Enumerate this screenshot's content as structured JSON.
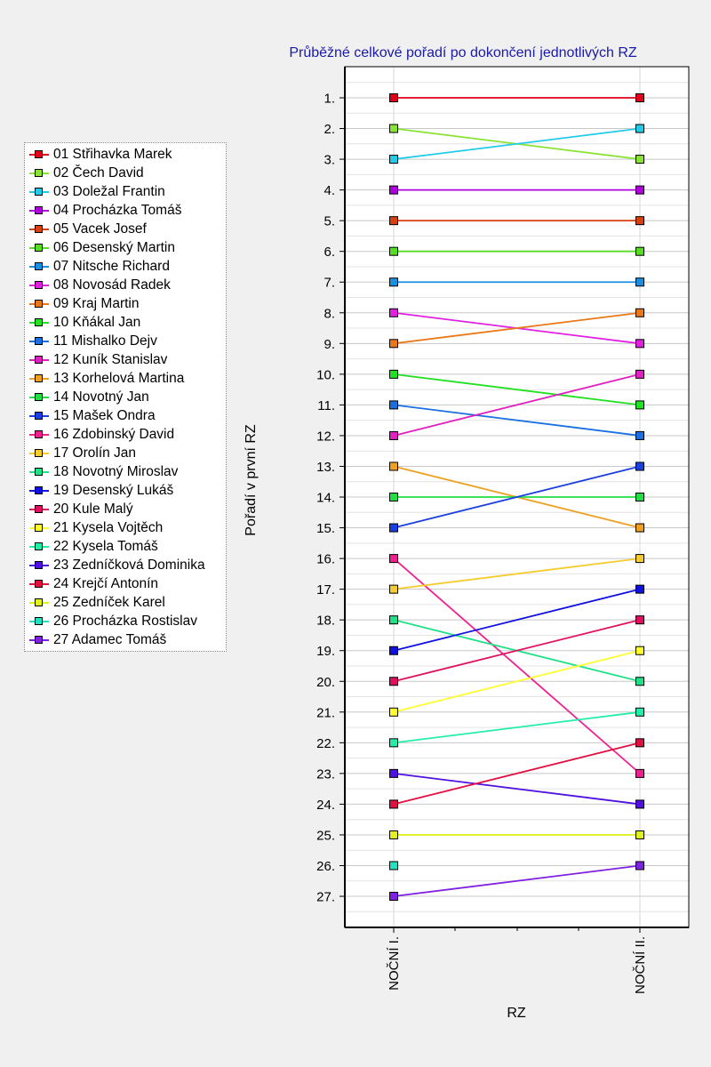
{
  "chart_data": {
    "type": "line",
    "title": "Průběžné celkové pořadí po dokončení jednotlivých RZ",
    "xlabel": "RZ",
    "ylabel": "Pořadí v první RZ",
    "categories": [
      "NOČNÍ I.",
      "NOČNÍ II."
    ],
    "y_ticks": [
      "1.",
      "2.",
      "3.",
      "4.",
      "5.",
      "6.",
      "7.",
      "8.",
      "9.",
      "10.",
      "11.",
      "12.",
      "13.",
      "14.",
      "15.",
      "16.",
      "17.",
      "18.",
      "19.",
      "20.",
      "21.",
      "22.",
      "23.",
      "24.",
      "25.",
      "26.",
      "27."
    ],
    "ylim": [
      1,
      27
    ],
    "y_inverted": true,
    "grid": true,
    "legend_position": "left",
    "series": [
      {
        "name": "01 Střihavka Marek",
        "values": [
          1,
          1
        ],
        "color": "#e0001a"
      },
      {
        "name": "02 Čech David",
        "values": [
          2,
          3
        ],
        "color": "#8ae234"
      },
      {
        "name": "03 Doležal Frantin",
        "values": [
          3,
          2
        ],
        "color": "#22cce8"
      },
      {
        "name": "04 Procházka Tomáš",
        "values": [
          4,
          4
        ],
        "color": "#b000e0"
      },
      {
        "name": "05 Vacek Josef",
        "values": [
          5,
          5
        ],
        "color": "#d84010"
      },
      {
        "name": "06 Desenský Martin",
        "values": [
          6,
          6
        ],
        "color": "#55dd22"
      },
      {
        "name": "07 Nitsche Richard",
        "values": [
          7,
          7
        ],
        "color": "#1a90e0"
      },
      {
        "name": "08 Novosád Radek",
        "values": [
          8,
          9
        ],
        "color": "#e020e0"
      },
      {
        "name": "09 Kraj Martin",
        "values": [
          9,
          8
        ],
        "color": "#e87818"
      },
      {
        "name": "10 Kňákal Jan",
        "values": [
          10,
          11
        ],
        "color": "#22e022"
      },
      {
        "name": "11 Mishalko Dejv",
        "values": [
          11,
          12
        ],
        "color": "#1a70e0"
      },
      {
        "name": "12 Kuník Stanislav",
        "values": [
          12,
          10
        ],
        "color": "#e020c0"
      },
      {
        "name": "13 Korhelová Martina",
        "values": [
          13,
          15
        ],
        "color": "#f0a020"
      },
      {
        "name": "14 Novotný Jan",
        "values": [
          14,
          14
        ],
        "color": "#22dd44"
      },
      {
        "name": "15 Mašek Ondra",
        "values": [
          15,
          13
        ],
        "color": "#1a40e0"
      },
      {
        "name": "16 Zdobinský David",
        "values": [
          16,
          23
        ],
        "color": "#f02090"
      },
      {
        "name": "17 Orolín Jan",
        "values": [
          17,
          16
        ],
        "color": "#f5cc30"
      },
      {
        "name": "18 Novotný Miroslav",
        "values": [
          18,
          20
        ],
        "color": "#22e088"
      },
      {
        "name": "19 Desenský Lukáš",
        "values": [
          19,
          17
        ],
        "color": "#1010e0"
      },
      {
        "name": "20 Kule Malý",
        "values": [
          20,
          18
        ],
        "color": "#e01060"
      },
      {
        "name": "21 Kysela Vojtěch",
        "values": [
          21,
          19
        ],
        "color": "#ffff30"
      },
      {
        "name": "22 Kysela Tomáš",
        "values": [
          22,
          21
        ],
        "color": "#22eeaa"
      },
      {
        "name": "23 Zedníčková Dominika",
        "values": [
          23,
          24
        ],
        "color": "#5010e0"
      },
      {
        "name": "24 Krejčí Antonín",
        "values": [
          24,
          22
        ],
        "color": "#e01040"
      },
      {
        "name": "25 Zedníček Karel",
        "values": [
          25,
          25
        ],
        "color": "#e0f020"
      },
      {
        "name": "26 Procházka Rostislav",
        "values": [
          26,
          null
        ],
        "color": "#22e0c0"
      },
      {
        "name": "27 Adamec Tomáš",
        "values": [
          27,
          26
        ],
        "color": "#8020e0"
      }
    ]
  }
}
